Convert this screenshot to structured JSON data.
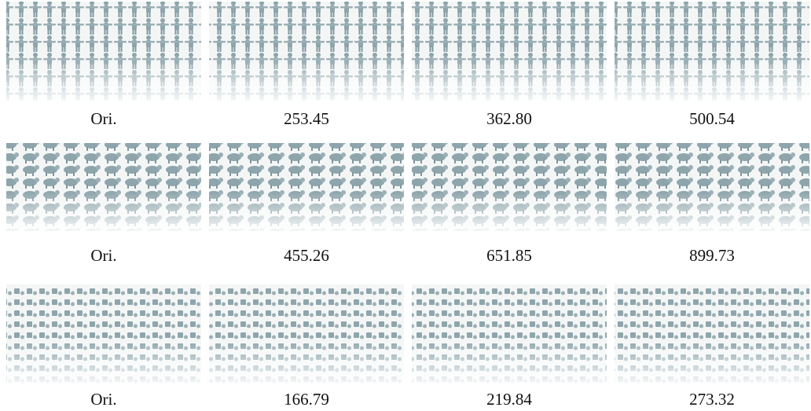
{
  "rows": [
    {
      "captions": [
        "Ori.",
        "253.45",
        "362.80",
        "500.54"
      ]
    },
    {
      "captions": [
        "Ori.",
        "455.26",
        "651.85",
        "899.73"
      ]
    },
    {
      "captions": [
        "Ori.",
        "166.79",
        "219.84",
        "273.32"
      ]
    }
  ]
}
